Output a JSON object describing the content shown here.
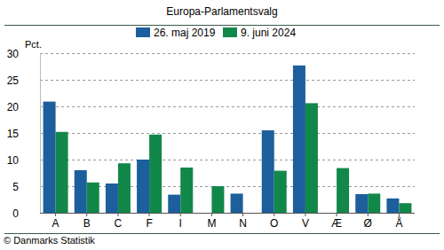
{
  "chart_data": {
    "type": "bar",
    "title": "Europa-Parlamentsvalg",
    "ylabel": "Pct.",
    "annotations": [
      "© Danmarks Statistik"
    ],
    "categories": [
      "A",
      "B",
      "C",
      "F",
      "I",
      "M",
      "N",
      "O",
      "V",
      "Æ",
      "Ø",
      "Å"
    ],
    "series": [
      {
        "name": "26. maj 2019",
        "color": "#1c5f9c",
        "values": [
          20.9,
          8.0,
          5.5,
          10.0,
          3.4,
          null,
          3.6,
          15.5,
          27.7,
          null,
          3.5,
          2.7
        ]
      },
      {
        "name": "9. juni 2024",
        "color": "#12874a",
        "values": [
          15.2,
          5.7,
          9.3,
          14.7,
          8.5,
          5.0,
          null,
          7.9,
          20.6,
          8.4,
          3.6,
          1.8
        ]
      }
    ],
    "ylim": [
      0,
      30
    ],
    "yticks": [
      0,
      5,
      10,
      15,
      20,
      25,
      30
    ],
    "grid": true,
    "legend": "top"
  }
}
